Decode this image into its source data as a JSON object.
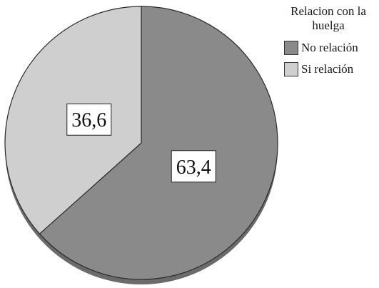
{
  "chart_data": {
    "type": "pie",
    "legend_title": "Relacion con la huelga",
    "legend_position": "top-right",
    "series": [
      {
        "name": "No relación",
        "value": 63.4,
        "label": "63,4",
        "color": "#8a8a8a"
      },
      {
        "name": "Si relación",
        "value": 36.6,
        "label": "36,6",
        "color": "#cfcfcf"
      }
    ]
  }
}
